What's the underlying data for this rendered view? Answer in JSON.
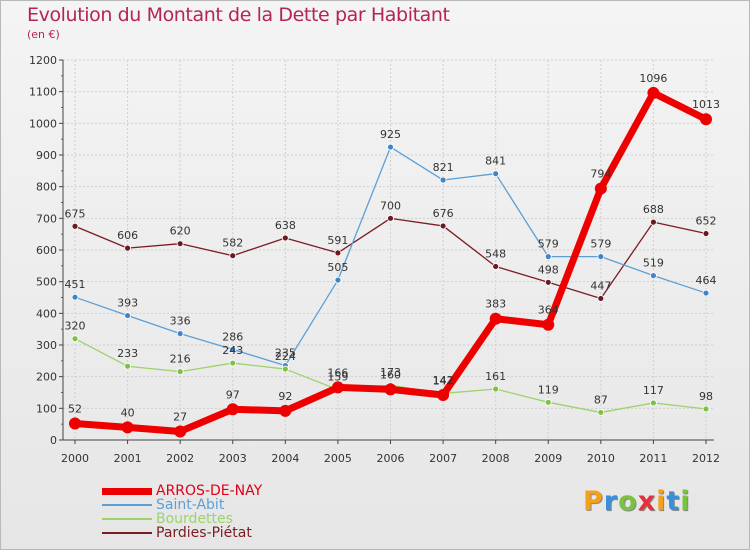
{
  "header": {
    "title": "Evolution du Montant de la Dette par Habitant",
    "unit": "(en €)"
  },
  "brand": {
    "letters": [
      "P",
      "r",
      "o",
      "x",
      "i",
      "t",
      "i"
    ],
    "colors": [
      "#f5a01a",
      "#3b8fd9",
      "#7cc242",
      "#e8303a",
      "#f5a01a",
      "#3b8fd9",
      "#7cc242"
    ]
  },
  "chart_data": {
    "type": "line",
    "x": [
      "2000",
      "2001",
      "2002",
      "2003",
      "2004",
      "2005",
      "2006",
      "2007",
      "2008",
      "2009",
      "2010",
      "2011",
      "2012"
    ],
    "ylim": [
      0,
      1200
    ],
    "yticks": [
      0,
      100,
      200,
      300,
      400,
      500,
      600,
      700,
      800,
      900,
      1000,
      1100,
      1200
    ],
    "grid": true,
    "legend_position": "bottom-left",
    "series": [
      {
        "name": "Pardies-Piétat",
        "color": "#7a1c24",
        "marker_color": "#6b1a22",
        "values": [
          675,
          606,
          620,
          582,
          638,
          591,
          700,
          676,
          548,
          498,
          447,
          688,
          652
        ]
      },
      {
        "name": "Saint-Abit",
        "color": "#5c9fd6",
        "marker_color": "#3f86c8",
        "values": [
          451,
          393,
          336,
          286,
          235,
          505,
          925,
          821,
          841,
          579,
          579,
          519,
          464
        ]
      },
      {
        "name": "Bourdettes",
        "color": "#9cd36b",
        "marker_color": "#7cc242",
        "values": [
          320,
          233,
          216,
          243,
          224,
          159,
          173,
          147,
          161,
          119,
          87,
          117,
          98
        ]
      },
      {
        "name": "ARROS-DE-NAY",
        "color": "#ee0000",
        "marker_color": "#ee0000",
        "values": [
          52,
          40,
          27,
          97,
          92,
          166,
          160,
          142,
          383,
          364,
          794,
          1096,
          1013
        ]
      }
    ],
    "legend_order": [
      "ARROS-DE-NAY",
      "Saint-Abit",
      "Bourdettes",
      "Pardies-Piétat"
    ]
  }
}
